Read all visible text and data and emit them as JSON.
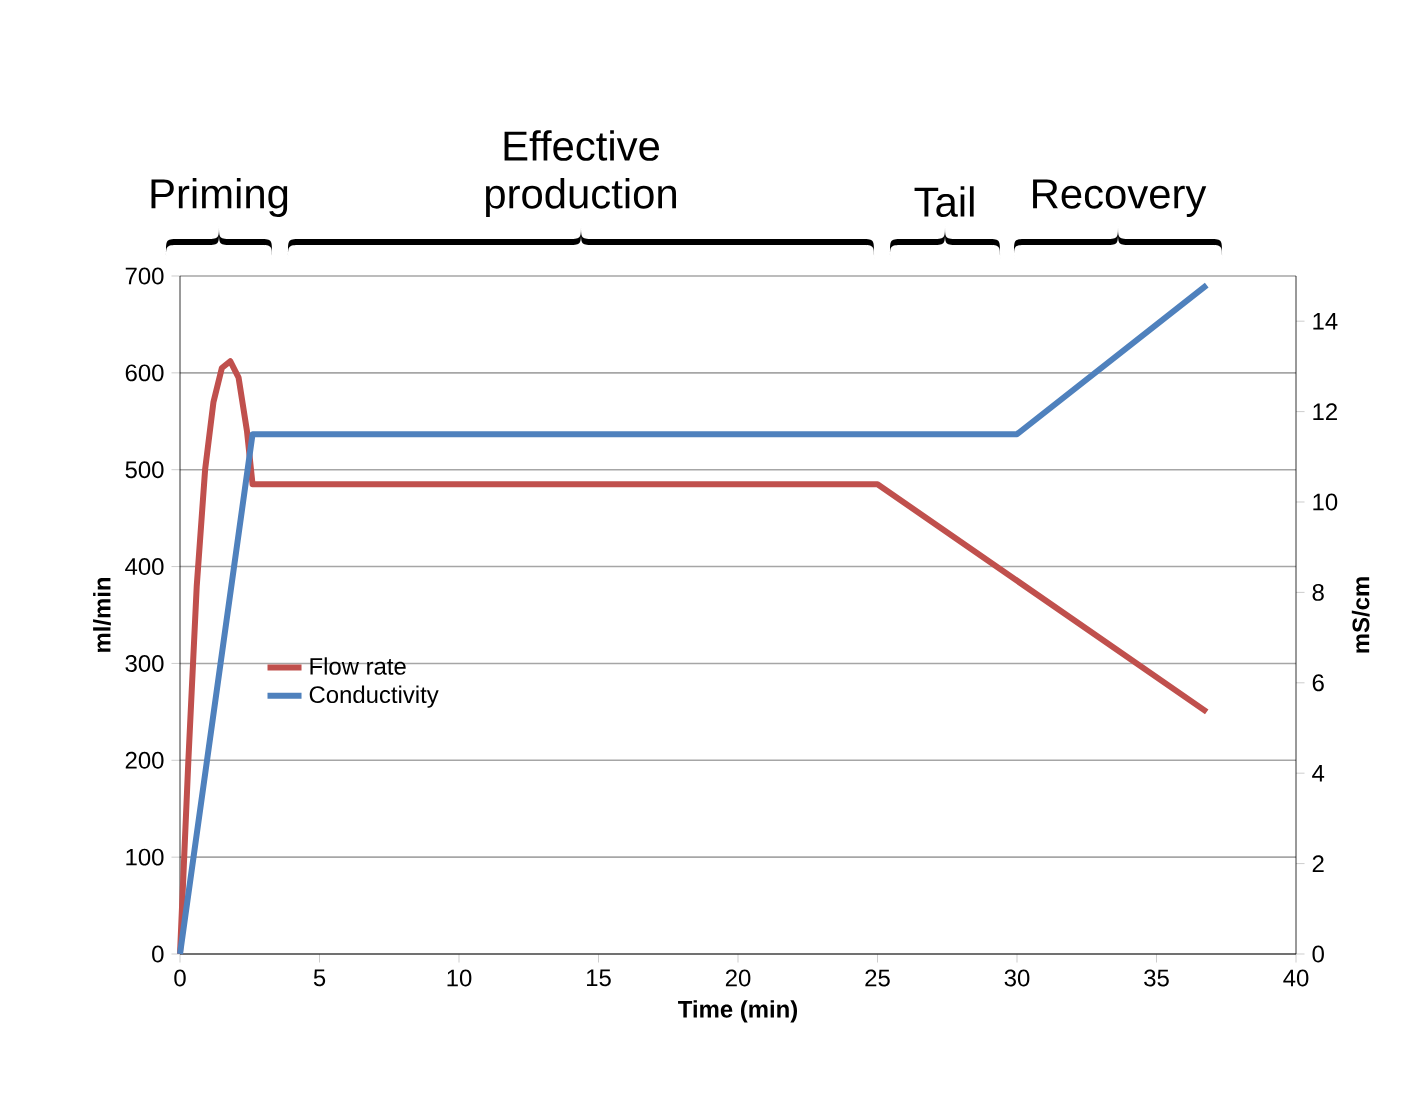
{
  "chart_data": {
    "type": "line",
    "xlabel": "Time (min)",
    "ylabel": "ml/min",
    "y2label": "mS/cm",
    "xlim": [
      0,
      40
    ],
    "xticks": [
      0,
      5,
      10,
      15,
      20,
      25,
      30,
      35,
      40
    ],
    "ylim": [
      0,
      700
    ],
    "yticks": [
      0,
      100,
      200,
      300,
      400,
      500,
      600,
      700
    ],
    "y2lim": [
      0,
      15
    ],
    "y2ticks": [
      0,
      2,
      4,
      6,
      8,
      10,
      12,
      14
    ],
    "grid": "y",
    "legend": "left",
    "marker": "none",
    "line_style": "solid",
    "series": [
      {
        "name": "Flow rate",
        "color": "#c0504d",
        "x": [
          0,
          0.3,
          0.6,
          0.9,
          1.2,
          1.5,
          1.8,
          2.1,
          2.4,
          2.6,
          25,
          36.8
        ],
        "values": [
          0,
          200,
          380,
          500,
          570,
          605,
          612,
          595,
          540,
          485,
          485,
          250
        ]
      },
      {
        "name": "Conductivity",
        "color": "#4f81bd",
        "axis": "y2",
        "x": [
          0,
          2.6,
          30,
          36.8
        ],
        "values": [
          0,
          11.5,
          11.5,
          14.8
        ]
      }
    ],
    "annotations": [
      "Priming",
      "Effective production",
      "Tail",
      "Recovery"
    ]
  }
}
